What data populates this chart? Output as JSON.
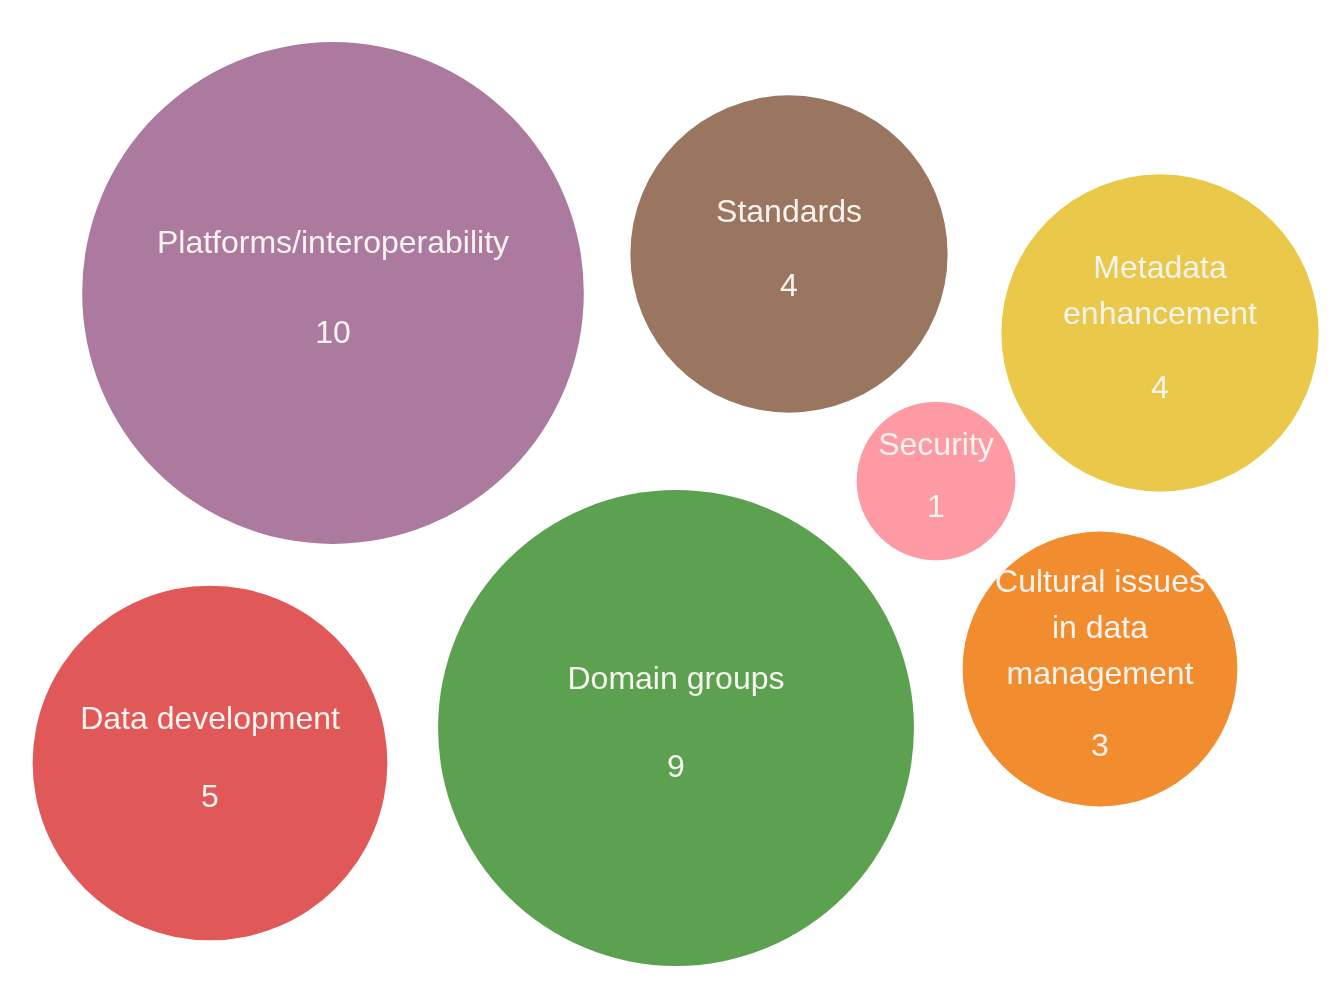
{
  "chart_data": {
    "type": "other",
    "categories": [
      "Platforms/interoperability",
      "Standards",
      "Metadata enhancement",
      "Security",
      "Cultural issues in data management",
      "Data development",
      "Domain groups"
    ],
    "values": [
      10,
      4,
      4,
      1,
      3,
      5,
      9
    ],
    "colors": [
      "#ad7a9f",
      "#9a7660",
      "#e9c84a",
      "#fd9aa3",
      "#f18d2f",
      "#e05858",
      "#5ba150"
    ],
    "data_labels": true
  }
}
